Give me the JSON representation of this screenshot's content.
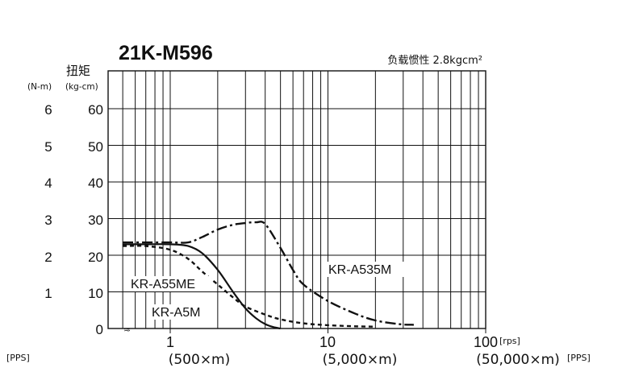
{
  "chart_data": {
    "type": "line",
    "title": "21K-M596",
    "note": "负载惯性 2.8kgcm²",
    "ylabel": "扭矩",
    "yunit_nm": "(N-m)",
    "yunit_kgcm": "(kg-cm)",
    "ylim": [
      0,
      60
    ],
    "yticks_kgcm": [
      "60",
      "50",
      "40",
      "30",
      "20",
      "10",
      "0"
    ],
    "yticks_nm": [
      "6",
      "5",
      "4",
      "3",
      "2",
      "1"
    ],
    "xscale": "log",
    "xlim": [
      0.5,
      100
    ],
    "xunit": "[rps]",
    "xticks": [
      {
        "value": 1,
        "label": "1",
        "pps": "(500×m)"
      },
      {
        "value": 10,
        "label": "10",
        "pps": "(5,000×m)"
      },
      {
        "value": 100,
        "label": "100",
        "pps": "(50,000×m)"
      }
    ],
    "pps_left": "[PPS]",
    "pps_right": "[PPS]",
    "grid": true,
    "series": [
      {
        "name": "KR-A5M",
        "style": "solid",
        "x": [
          0.5,
          0.7,
          1.0,
          1.3,
          1.6,
          2.0,
          2.5,
          3.0,
          3.5,
          4.0,
          4.5,
          5.0
        ],
        "y": [
          23.0,
          23.0,
          23.0,
          22.5,
          20.5,
          16.0,
          10.0,
          5.5,
          2.8,
          1.2,
          0.4,
          0.0
        ]
      },
      {
        "name": "KR-A55ME",
        "style": "dashed",
        "x": [
          0.5,
          0.7,
          1.0,
          1.3,
          1.6,
          2.0,
          2.5,
          3.0,
          4.0,
          5.0,
          7.0,
          10.0,
          15.0,
          20.0
        ],
        "y": [
          22.5,
          22.5,
          21.5,
          19.0,
          15.5,
          12.0,
          8.5,
          6.0,
          3.8,
          2.5,
          1.4,
          0.9,
          0.6,
          0.5
        ]
      },
      {
        "name": "KR-A535M",
        "style": "dashdot",
        "x": [
          0.5,
          1.0,
          1.3,
          1.6,
          2.0,
          2.5,
          3.0,
          3.5,
          4.0,
          5.0,
          6.0,
          7.0,
          10.0,
          15.0,
          20.0,
          28.0,
          35.0
        ],
        "y": [
          23.5,
          23.5,
          23.5,
          25.0,
          27.0,
          28.3,
          28.8,
          29.0,
          28.5,
          22.0,
          16.0,
          12.0,
          7.5,
          4.0,
          2.2,
          1.2,
          1.0
        ]
      }
    ]
  }
}
